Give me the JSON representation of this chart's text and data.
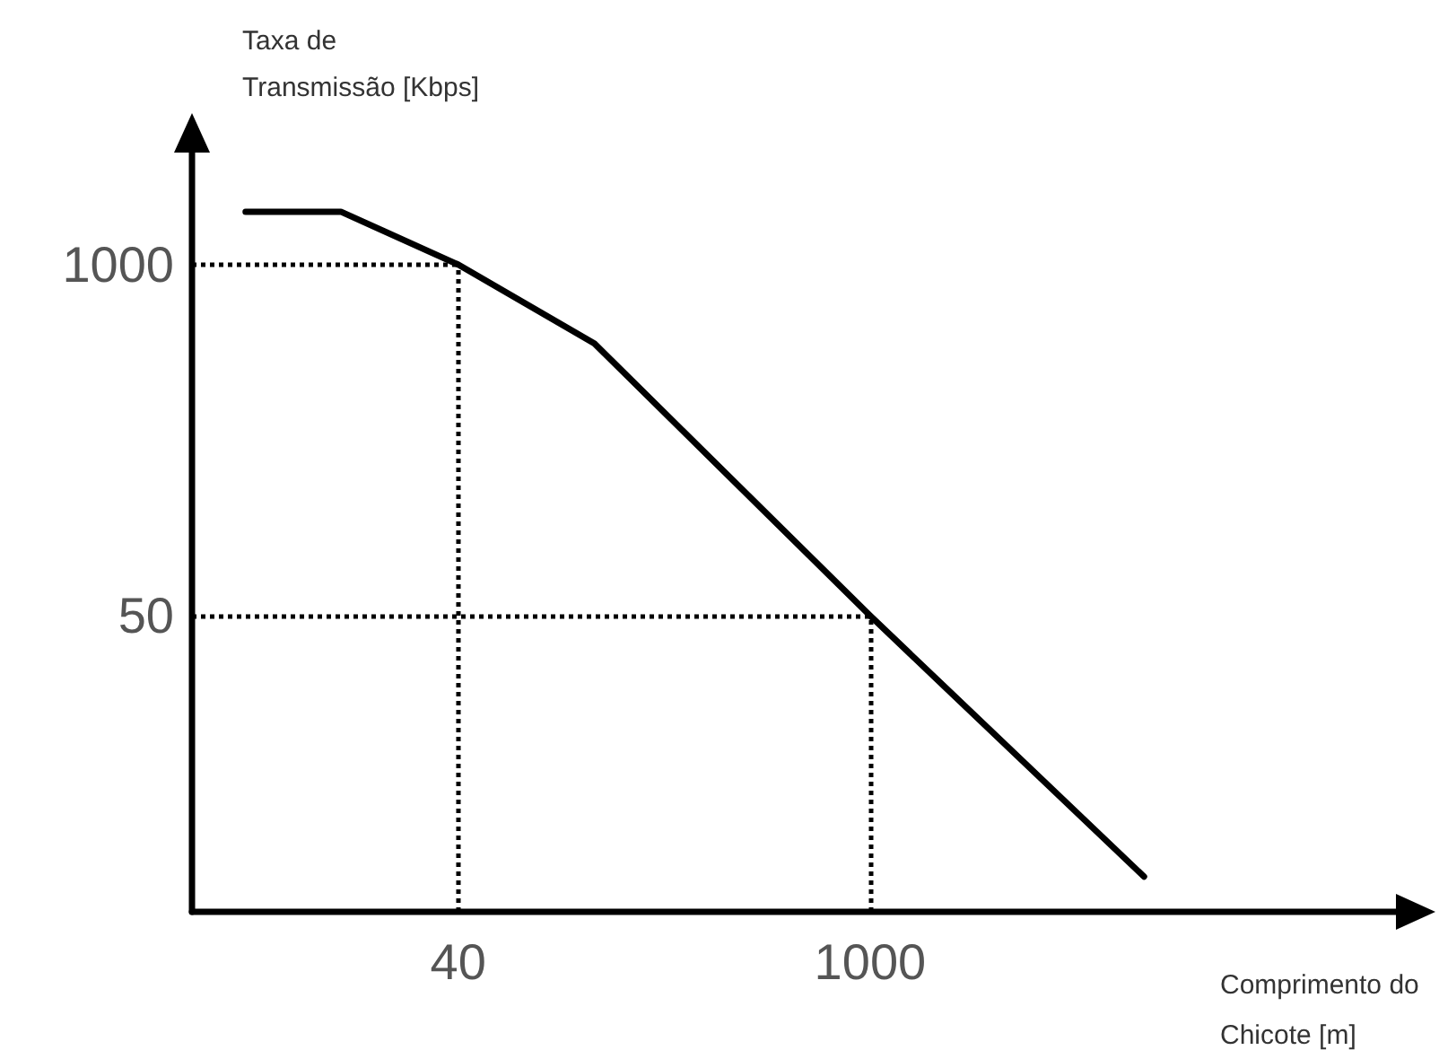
{
  "chart_data": {
    "type": "line",
    "xlabel": "Comprimento do Chicote [m]",
    "ylabel": "Taxa de Transmissão [Kbps]",
    "x": [
      7.6,
      16,
      40,
      116,
      1000,
      8500
    ],
    "series": [
      {
        "color": "#000000",
        "values": [
          1570,
          1570,
          1000,
          510,
          50,
          5.4
        ]
      }
    ],
    "log": "xy",
    "xlim": [
      5,
      70000
    ],
    "ylim": [
      4,
      2600
    ],
    "xticks": [
      40,
      1000
    ],
    "yticks": [
      50,
      1000
    ],
    "grid": false,
    "marker": "none",
    "line_style": "solid",
    "ref_lines": [
      {
        "axis": "x",
        "value": 40,
        "color": "#000000",
        "line_style": "dotted"
      },
      {
        "axis": "y",
        "value": 1000,
        "color": "#000000",
        "line_style": "dotted"
      },
      {
        "axis": "x",
        "value": 1000,
        "color": "#000000",
        "line_style": "dotted"
      },
      {
        "axis": "y",
        "value": 50,
        "color": "#000000",
        "line_style": "dotted"
      }
    ]
  }
}
